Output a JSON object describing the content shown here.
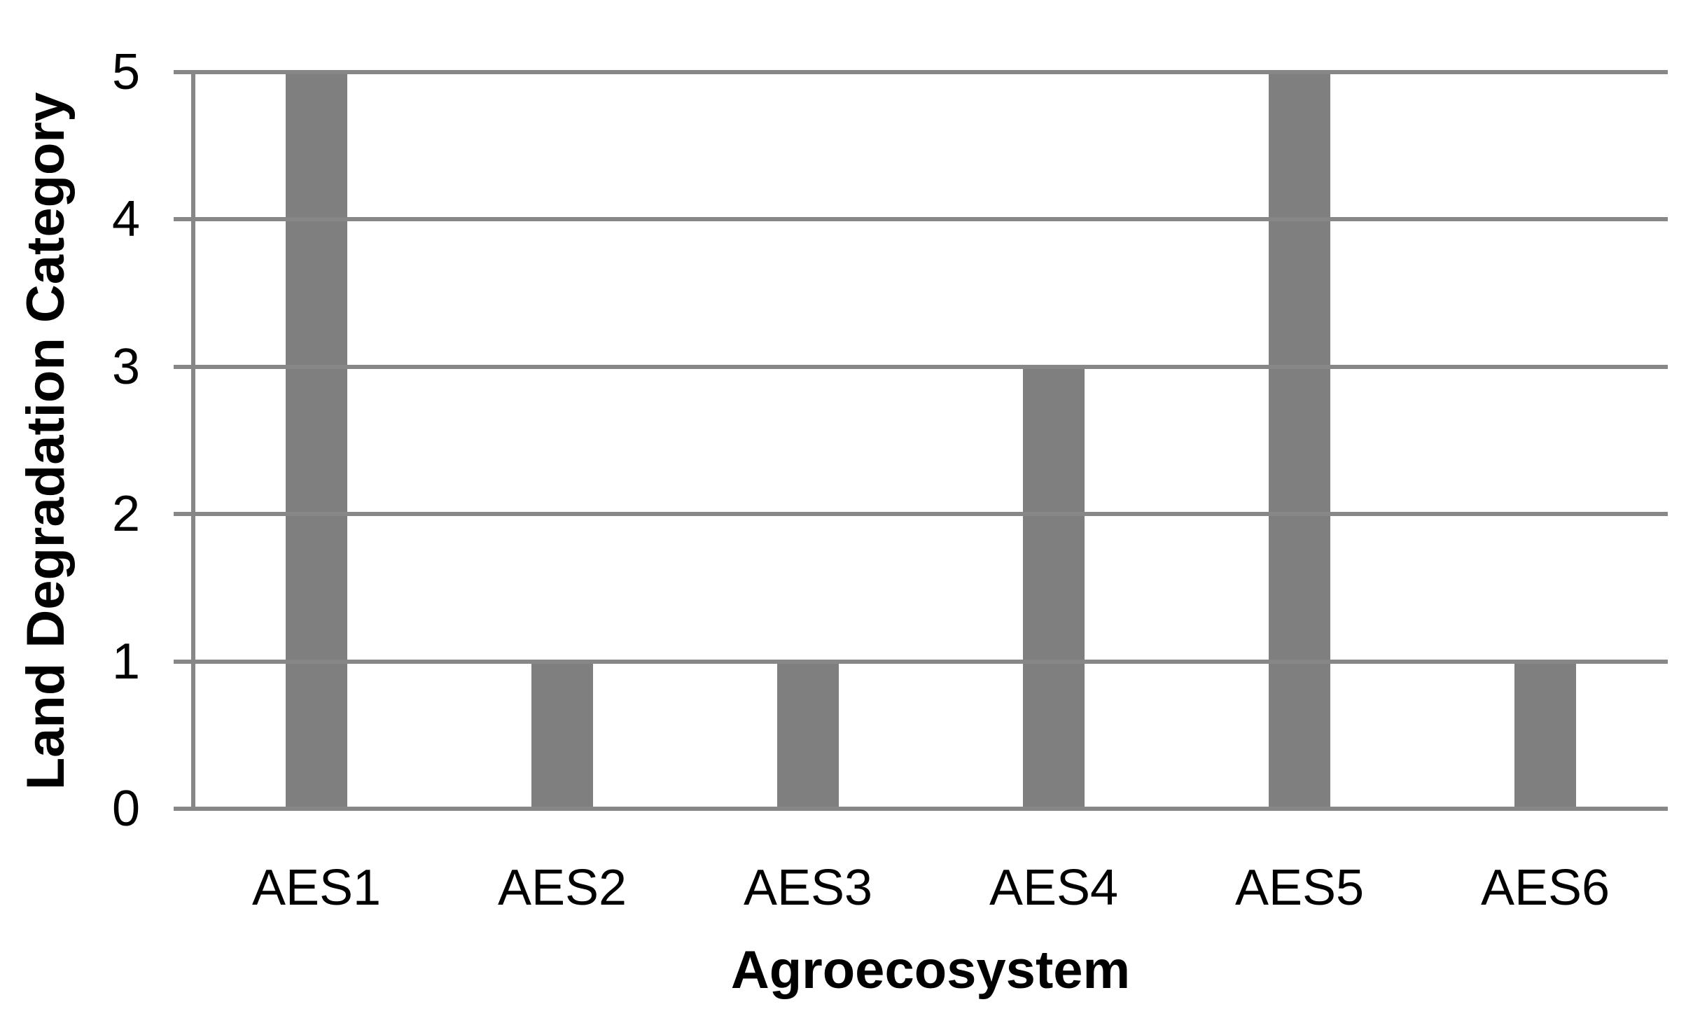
{
  "chart_data": {
    "type": "bar",
    "categories": [
      "AES1",
      "AES2",
      "AES3",
      "AES4",
      "AES5",
      "AES6"
    ],
    "values": [
      5,
      1,
      1,
      3,
      5,
      1
    ],
    "title": "",
    "xlabel": "Agroecosystem",
    "ylabel": "Land Degradation Category",
    "ylim": [
      0,
      5
    ],
    "yticks": [
      0,
      1,
      2,
      3,
      4,
      5
    ],
    "grid": "horizontal",
    "legend_position": "none",
    "bar_color": "#7f7f7f",
    "gridline_color": "#878787",
    "axis_color": "#878787",
    "text_color": "#000000",
    "background_color": "#ffffff"
  }
}
